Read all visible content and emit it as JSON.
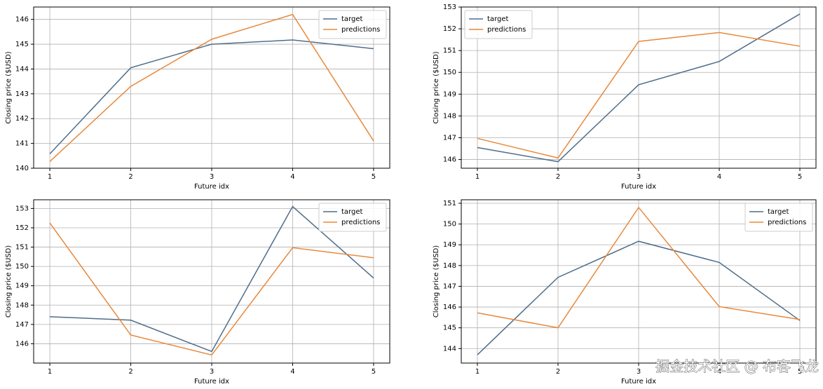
{
  "chart_data": [
    {
      "type": "line",
      "x": [
        1,
        2,
        3,
        4,
        5
      ],
      "xlabel": "Future idx",
      "ylabel": "Closing price ($USD)",
      "series": [
        {
          "name": "target",
          "color": "#4f6d8a",
          "values": [
            140.58,
            144.05,
            145.0,
            145.17,
            144.82
          ]
        },
        {
          "name": "predictions",
          "color": "#e8883a",
          "values": [
            140.27,
            143.3,
            145.2,
            146.2,
            141.1
          ]
        }
      ],
      "xlim": [
        0.8,
        5.2
      ],
      "xticks": [
        1,
        2,
        3,
        4,
        5
      ],
      "ylim": [
        140.0,
        146.5
      ],
      "yticks": [
        140,
        141,
        142,
        143,
        144,
        145,
        146
      ],
      "grid": true,
      "legend": "upper-right"
    },
    {
      "type": "line",
      "x": [
        1,
        2,
        3,
        4,
        5
      ],
      "xlabel": "Future idx",
      "ylabel": "Closing price ($USD)",
      "series": [
        {
          "name": "target",
          "color": "#4f6d8a",
          "values": [
            146.55,
            145.9,
            149.43,
            150.5,
            152.68
          ]
        },
        {
          "name": "predictions",
          "color": "#e8883a",
          "values": [
            146.97,
            146.07,
            151.42,
            151.83,
            151.2
          ]
        }
      ],
      "xlim": [
        0.8,
        5.2
      ],
      "xticks": [
        1,
        2,
        3,
        4,
        5
      ],
      "ylim": [
        145.6,
        153.0
      ],
      "yticks": [
        146,
        147,
        148,
        149,
        150,
        151,
        152,
        153
      ],
      "grid": true,
      "legend": "upper-left"
    },
    {
      "type": "line",
      "x": [
        1,
        2,
        3,
        4,
        5
      ],
      "xlabel": "Future idx",
      "ylabel": "Closing price ($USD)",
      "series": [
        {
          "name": "target",
          "color": "#4f6d8a",
          "values": [
            147.4,
            147.22,
            145.6,
            153.1,
            149.4
          ]
        },
        {
          "name": "predictions",
          "color": "#e8883a",
          "values": [
            152.25,
            146.45,
            145.42,
            150.97,
            150.45
          ]
        }
      ],
      "xlim": [
        0.8,
        5.2
      ],
      "xticks": [
        1,
        2,
        3,
        4,
        5
      ],
      "ylim": [
        145.0,
        153.45
      ],
      "yticks": [
        146,
        147,
        148,
        149,
        150,
        151,
        152,
        153
      ],
      "grid": true,
      "legend": "upper-right"
    },
    {
      "type": "line",
      "x": [
        1,
        2,
        3,
        4,
        5
      ],
      "xlabel": "Future idx",
      "ylabel": "Closing price ($USD)",
      "series": [
        {
          "name": "target",
          "color": "#4f6d8a",
          "values": [
            143.7,
            147.43,
            149.17,
            148.15,
            145.35
          ]
        },
        {
          "name": "predictions",
          "color": "#e8883a",
          "values": [
            145.72,
            145.0,
            150.8,
            146.02,
            145.4
          ]
        }
      ],
      "xlim": [
        0.8,
        5.2
      ],
      "xticks": [
        1,
        2,
        3,
        4,
        5
      ],
      "ylim": [
        143.3,
        151.17
      ],
      "yticks": [
        144,
        145,
        146,
        147,
        148,
        149,
        150,
        151
      ],
      "grid": true,
      "legend": "upper-right"
    }
  ],
  "watermark": "掘金技术社区 @ 布客飞龙"
}
